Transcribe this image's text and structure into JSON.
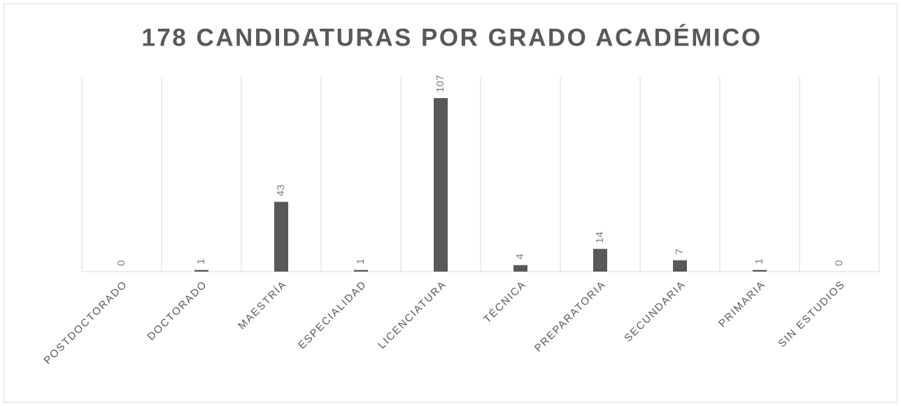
{
  "chart_data": {
    "type": "bar",
    "title": "178 CANDIDATURAS POR GRADO ACADÉMICO",
    "categories": [
      "POSTDOCTORADO",
      "DOCTORADO",
      "MAESTRÍA",
      "ESPECIALIDAD",
      "LICENCIATURA",
      "TÉCNICA",
      "PREPARATORIA",
      "SECUNDARIA",
      "PRIMARIA",
      "SIN ESTUDIOS"
    ],
    "values": [
      0,
      1,
      43,
      1,
      107,
      4,
      14,
      7,
      1,
      0
    ],
    "color": "#595959",
    "ylim": [
      0,
      120
    ]
  }
}
